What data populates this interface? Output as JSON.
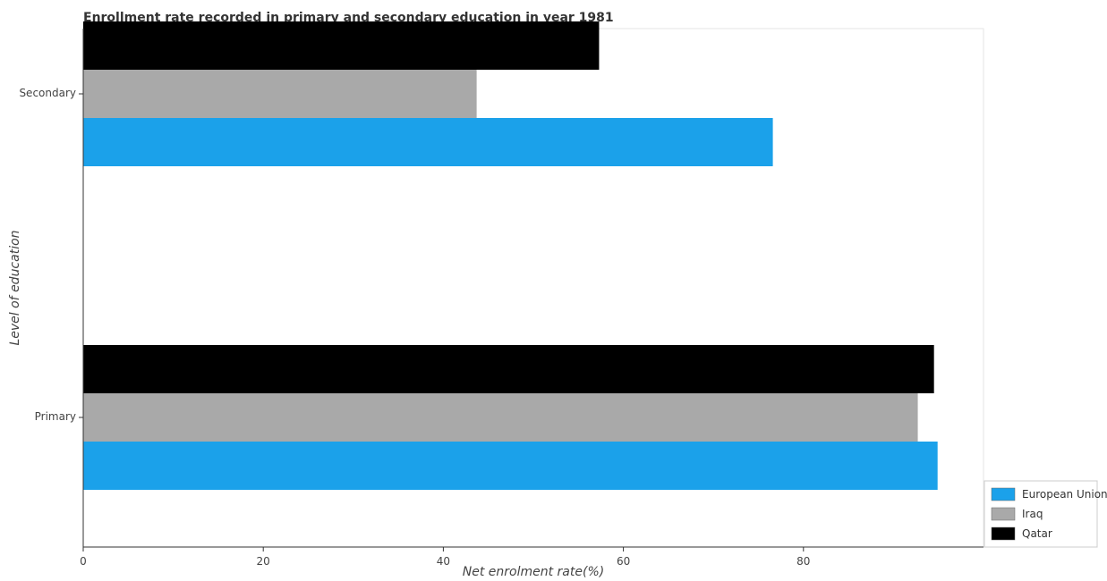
{
  "chart_data": {
    "type": "bar",
    "orientation": "horizontal",
    "title": "Enrollment rate recorded in primary and secondary education in year 1981",
    "xlabel": "Net enrolment rate(%)",
    "ylabel": "Level of education",
    "categories": [
      "Primary",
      "Secondary"
    ],
    "xlim": [
      0,
      100
    ],
    "xticks": [
      0,
      20,
      40,
      60,
      80
    ],
    "grid": false,
    "legend_position": "bottom-right",
    "series": [
      {
        "name": "European Union",
        "color": "#1ba1ea",
        "values": [
          94.9,
          76.6
        ]
      },
      {
        "name": "Iraq",
        "color": "#a9a9a9",
        "values": [
          92.7,
          43.7
        ]
      },
      {
        "name": "Qatar",
        "color": "#000000",
        "values": [
          94.5,
          57.3
        ]
      }
    ]
  }
}
